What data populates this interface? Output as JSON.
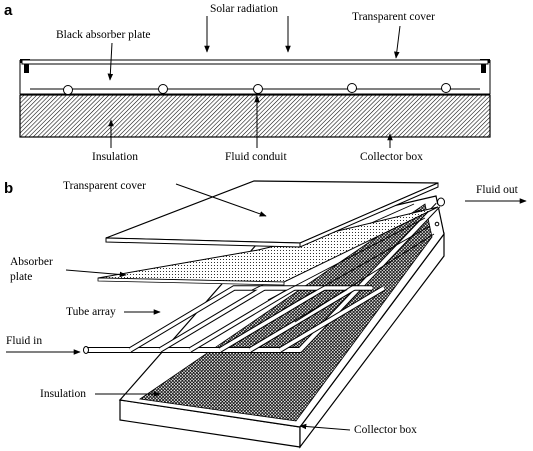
{
  "panel_a": {
    "letter": "a",
    "labels": {
      "solar_radiation": "Solar radiation",
      "transparent_cover": "Transparent cover",
      "black_absorber_plate": "Black absorber plate",
      "insulation": "Insulation",
      "fluid_conduit": "Fluid conduit",
      "collector_box": "Collector box"
    }
  },
  "panel_b": {
    "letter": "b",
    "labels": {
      "transparent_cover": "Transparent cover",
      "fluid_out": "Fluid out",
      "absorber_line1": "Absorber",
      "absorber_line2": "plate",
      "tube_array": "Tube array",
      "fluid_in": "Fluid in",
      "insulation": "Insulation",
      "collector_box": "Collector box"
    }
  },
  "colors": {
    "ink": "#000000",
    "background": "#ffffff",
    "hatch": "#000000"
  }
}
